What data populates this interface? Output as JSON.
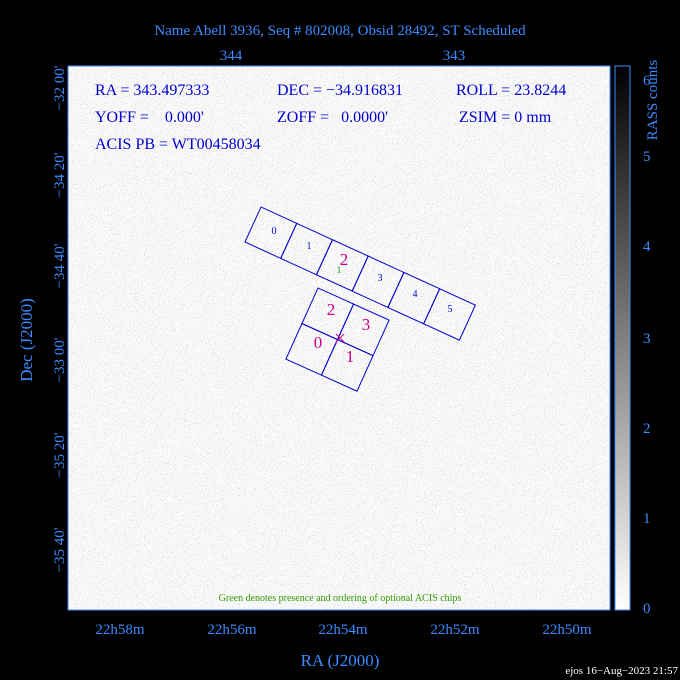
{
  "title": "Name Abell 3936, Seq # 802008, Obsid 28492, ST Scheduled",
  "top_axis": {
    "labels": [
      "344",
      "343"
    ]
  },
  "left_axis": {
    "labels": [
      "−32 00'",
      "−34 20'",
      "−34 40'",
      "−33 00'",
      "−35 20'",
      "−35 40'"
    ]
  },
  "bottom_axis": {
    "labels": [
      "22h58m",
      "22h56m",
      "22h54m",
      "22h52m",
      "22h50m"
    ]
  },
  "x_axis_title": "RA (J2000)",
  "y_axis_title": "Dec (J2000)",
  "colorbar": {
    "title": "RASS counts",
    "labels": [
      "0",
      "1",
      "2",
      "3",
      "4",
      "5",
      "6"
    ]
  },
  "info": {
    "ra": "RA = 343.497333",
    "dec": "DEC = −34.916831",
    "roll": "ROLL = 23.8244",
    "yoff": "YOFF =    0.000'",
    "zoff": "ZOFF =   0.0000'",
    "zsim": "ZSIM = 0 mm",
    "acis_pb": "ACIS PB = WT00458034"
  },
  "acis_s": {
    "chips": [
      "0",
      "1",
      "2",
      "3",
      "4",
      "5"
    ],
    "optional_chip": "2",
    "optional_order": "1"
  },
  "acis_i": {
    "chips": [
      "2",
      "3",
      "0",
      "1"
    ]
  },
  "note": "Green denotes presence and ordering of optional ACIS chips",
  "footer": "ejos 16−Aug−2023 21:57"
}
